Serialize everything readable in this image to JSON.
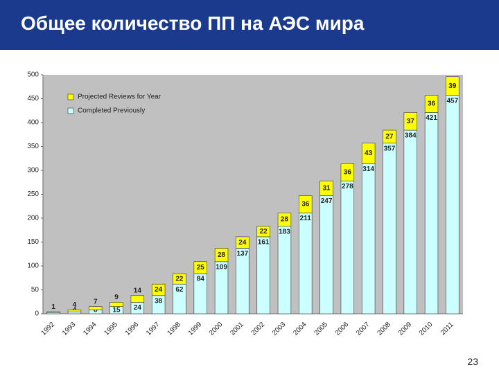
{
  "title": "Общее количество ПП на АЭС мира",
  "page_number": "23",
  "chart_data": {
    "type": "stacked_bar",
    "categories": [
      "1992",
      "1993",
      "1994",
      "1995",
      "1996",
      "1997",
      "1998",
      "1999",
      "2000",
      "2001",
      "2002",
      "2003",
      "2004",
      "2005",
      "2006",
      "2007",
      "2008",
      "2009",
      "2010",
      "2011"
    ],
    "series": [
      {
        "name": "Completed Previously",
        "color": "#ccffff",
        "values": [
          3,
          4,
          8,
          15,
          24,
          38,
          62,
          84,
          109,
          137,
          161,
          183,
          211,
          247,
          278,
          314,
          357,
          384,
          421,
          457
        ],
        "value_labels": [
          null,
          "4",
          "8",
          "15",
          "24",
          "38",
          "62",
          "84",
          "109",
          "137",
          "161",
          "183",
          "211",
          "247",
          "278",
          "314",
          "357",
          "384",
          "421",
          "457"
        ]
      },
      {
        "name": "Projected Reviews for Year",
        "color": "#ffff00",
        "values": [
          1,
          4,
          7,
          9,
          14,
          24,
          22,
          25,
          28,
          24,
          22,
          28,
          36,
          31,
          36,
          43,
          27,
          37,
          36,
          39
        ]
      }
    ],
    "ylim": [
      0,
      500
    ],
    "yticks": [
      0,
      50,
      100,
      150,
      200,
      250,
      300,
      350,
      400,
      450,
      500
    ],
    "legend": "top-left",
    "plot_background": "#c0c0c0"
  }
}
